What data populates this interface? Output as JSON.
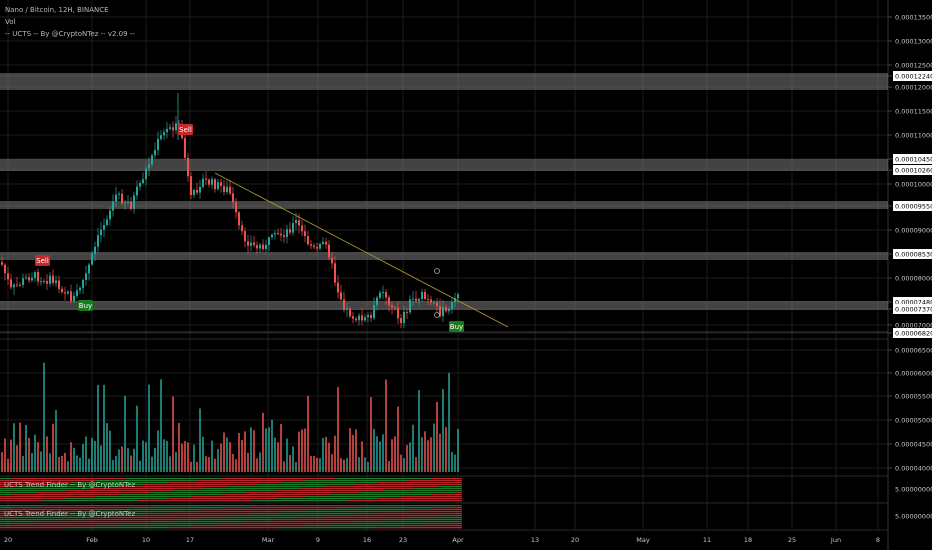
{
  "legend": {
    "symbol": "Nano / Bitcoin, 12H, BINANCE",
    "vol": "Vol",
    "indicator": "-- UCTS -- By @CryptoNTez -- v2.09 --"
  },
  "pane_labels": [
    "UCTS Trend Finder -- By @CryptoNTez",
    "UCTS Trend Finder -- By @CryptoNTez"
  ],
  "pane_values": [
    "5.00000000",
    "5.00000000"
  ],
  "price_axis": [
    "0.00013500",
    "0.00013000",
    "0.00012500",
    "0.00012240",
    "0.00012000",
    "0.00011500",
    "0.00011000",
    "0.00010450",
    "0.00010260",
    "0.00010000",
    "0.00009550",
    "0.00009000",
    "0.00008530",
    "0.00008000",
    "0.00007480",
    "0.00007370",
    "0.00007000",
    "0.00006820",
    "0.00006500",
    "0.00006000",
    "0.00005500",
    "0.00005000",
    "0.00004500",
    "0.00004000"
  ],
  "time_axis": [
    "20",
    "Feb",
    "10",
    "17",
    "Mar",
    "9",
    "16",
    "23",
    "Apr",
    "13",
    "20",
    "May",
    "11",
    "18",
    "25",
    "Jun",
    "8"
  ],
  "signals": [
    {
      "label": "Sell",
      "type": "sell"
    },
    {
      "label": "Buy",
      "type": "buy"
    },
    {
      "label": "Sell",
      "type": "sell"
    },
    {
      "label": "Buy",
      "type": "buy"
    }
  ],
  "colors": {
    "bull": "#26a69a",
    "bear": "#ef5350",
    "sell_badge": "#c62828",
    "buy_badge": "#1b7a1b",
    "zone": "#7a7a7a",
    "trendline": "#b59a2a",
    "grid": "#1c1c1c"
  }
}
